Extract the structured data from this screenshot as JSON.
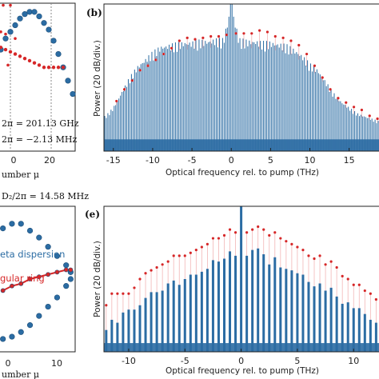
{
  "panels": {
    "a_partial": {
      "dashed_line_values": [
        0,
        17
      ],
      "x_ticks": [
        "0",
        "20"
      ],
      "xlabel": "umber μ",
      "annot1": "2π = 201.13 GHz",
      "annot2": "2π = −2.13 MHz",
      "annot_bottom": "D₂/2π = 14.58 MHz"
    },
    "b": {
      "label": "(b)",
      "ylabel": "Power (20 dB/div.)",
      "xlabel": "Optical frequency rel. to pump (THz)",
      "x_ticks": [
        "-15",
        "-10",
        "-5",
        "0",
        "5",
        "10",
        "15"
      ]
    },
    "d_partial": {
      "legend1": "eta dispersion",
      "legend2": "gular ring",
      "x_ticks": [
        "0",
        "10"
      ],
      "xlabel": "umber μ"
    },
    "e": {
      "label": "(e)",
      "ylabel": "Power (20 dB/div.)",
      "xlabel": "Optical frequency rel. to pump (THz)",
      "x_ticks": [
        "-10",
        "-5",
        "0",
        "5",
        "10"
      ]
    }
  },
  "colors": {
    "blue": "#2b6ca3",
    "red": "#d62728",
    "pink": "#f2b6b6"
  },
  "chart_data": [
    {
      "type": "bar",
      "panel": "b",
      "xlabel": "Optical frequency rel. to pump (THz)",
      "ylabel": "Power (20 dB/div.)",
      "xlim": [
        -16.2,
        19
      ],
      "ylim": [
        0,
        100
      ],
      "envelope": [
        [
          -16.0,
          24
        ],
        [
          -15.0,
          30
        ],
        [
          -14.0,
          40
        ],
        [
          -13.0,
          50
        ],
        [
          -12.0,
          58
        ],
        [
          -11.0,
          63
        ],
        [
          -10.0,
          68
        ],
        [
          -9.0,
          72
        ],
        [
          -8.0,
          73
        ],
        [
          -7.0,
          74
        ],
        [
          -6.0,
          75
        ],
        [
          -5.0,
          75
        ],
        [
          -4.0,
          76
        ],
        [
          -3.0,
          76
        ],
        [
          -2.0,
          77
        ],
        [
          -1.0,
          77
        ],
        [
          0.0,
          100
        ],
        [
          1.0,
          77
        ],
        [
          2.0,
          76
        ],
        [
          3.0,
          76
        ],
        [
          4.0,
          75
        ],
        [
          5.0,
          75
        ],
        [
          6.0,
          74
        ],
        [
          7.0,
          73
        ],
        [
          8.0,
          70
        ],
        [
          9.0,
          66
        ],
        [
          10.0,
          60
        ],
        [
          11.0,
          56
        ],
        [
          12.0,
          48
        ],
        [
          13.0,
          40
        ],
        [
          14.0,
          34
        ],
        [
          15.0,
          30
        ],
        [
          16.0,
          26
        ],
        [
          17.0,
          24
        ],
        [
          18.0,
          22
        ],
        [
          19.0,
          20
        ]
      ],
      "markers": [
        [
          -14.6,
          34
        ],
        [
          -13.6,
          42
        ],
        [
          -12.6,
          48
        ],
        [
          -11.6,
          55
        ],
        [
          -10.6,
          58
        ],
        [
          -9.6,
          62
        ],
        [
          -8.6,
          66
        ],
        [
          -7.6,
          70
        ],
        [
          -6.6,
          75
        ],
        [
          -5.6,
          77
        ],
        [
          -4.6,
          76
        ],
        [
          -3.6,
          77
        ],
        [
          -2.6,
          78
        ],
        [
          -1.6,
          78
        ],
        [
          -0.6,
          79
        ],
        [
          0.6,
          80
        ],
        [
          1.6,
          80
        ],
        [
          2.6,
          80
        ],
        [
          3.6,
          82
        ],
        [
          4.6,
          81
        ],
        [
          5.6,
          78
        ],
        [
          6.6,
          77
        ],
        [
          7.6,
          75
        ],
        [
          8.6,
          72
        ],
        [
          9.6,
          66
        ],
        [
          10.6,
          58
        ],
        [
          11.6,
          50
        ],
        [
          12.6,
          42
        ],
        [
          13.6,
          36
        ],
        [
          14.6,
          33
        ],
        [
          15.6,
          30
        ],
        [
          16.6,
          28
        ],
        [
          17.6,
          24
        ],
        [
          18.6,
          22
        ]
      ]
    },
    {
      "type": "bar",
      "panel": "e",
      "xlabel": "Optical frequency rel. to pump (THz)",
      "ylabel": "Power (20 dB/div.)",
      "xlim": [
        -12.2,
        12.4
      ],
      "ylim": [
        0,
        100
      ],
      "lines": [
        [
          -12.0,
          15
        ],
        [
          -11.5,
          22
        ],
        [
          -11.0,
          20
        ],
        [
          -10.5,
          27
        ],
        [
          -10.0,
          29
        ],
        [
          -9.5,
          29
        ],
        [
          -9.0,
          32
        ],
        [
          -8.5,
          37
        ],
        [
          -8.0,
          41
        ],
        [
          -7.5,
          41
        ],
        [
          -7.0,
          42
        ],
        [
          -6.5,
          47
        ],
        [
          -6.0,
          49
        ],
        [
          -5.5,
          46
        ],
        [
          -5.0,
          50
        ],
        [
          -4.5,
          53
        ],
        [
          -4.0,
          53
        ],
        [
          -3.5,
          55
        ],
        [
          -3.0,
          57
        ],
        [
          -2.5,
          63
        ],
        [
          -2.0,
          62
        ],
        [
          -1.5,
          64
        ],
        [
          -1.0,
          69
        ],
        [
          -0.5,
          66
        ],
        [
          0.0,
          100
        ],
        [
          0.5,
          66
        ],
        [
          1.0,
          70
        ],
        [
          1.5,
          71
        ],
        [
          2.0,
          67
        ],
        [
          2.5,
          60
        ],
        [
          3.0,
          65
        ],
        [
          3.5,
          58
        ],
        [
          4.0,
          57
        ],
        [
          4.5,
          56
        ],
        [
          5.0,
          54
        ],
        [
          5.5,
          53
        ],
        [
          6.0,
          48
        ],
        [
          6.5,
          45
        ],
        [
          7.0,
          47
        ],
        [
          7.5,
          42
        ],
        [
          8.0,
          44
        ],
        [
          8.5,
          38
        ],
        [
          9.0,
          33
        ],
        [
          9.5,
          34
        ],
        [
          10.0,
          30
        ],
        [
          10.5,
          30
        ],
        [
          11.0,
          26
        ],
        [
          11.5,
          22
        ],
        [
          12.0,
          20
        ]
      ],
      "markers": [
        [
          -12.0,
          32
        ],
        [
          -11.5,
          40
        ],
        [
          -11.0,
          40
        ],
        [
          -10.5,
          40
        ],
        [
          -10.0,
          40
        ],
        [
          -9.5,
          44
        ],
        [
          -9.0,
          50
        ],
        [
          -8.5,
          54
        ],
        [
          -8.0,
          56
        ],
        [
          -7.5,
          58
        ],
        [
          -7.0,
          60
        ],
        [
          -6.5,
          62
        ],
        [
          -6.0,
          66
        ],
        [
          -5.5,
          66
        ],
        [
          -5.0,
          66
        ],
        [
          -4.5,
          68
        ],
        [
          -4.0,
          70
        ],
        [
          -3.5,
          72
        ],
        [
          -3.0,
          74
        ],
        [
          -2.5,
          78
        ],
        [
          -2.0,
          78
        ],
        [
          -1.5,
          80
        ],
        [
          -1.0,
          84
        ],
        [
          -0.5,
          82
        ],
        [
          0.5,
          82
        ],
        [
          1.0,
          84
        ],
        [
          1.5,
          86
        ],
        [
          2.0,
          84
        ],
        [
          2.5,
          80
        ],
        [
          3.0,
          82
        ],
        [
          3.5,
          78
        ],
        [
          4.0,
          76
        ],
        [
          4.5,
          74
        ],
        [
          5.0,
          72
        ],
        [
          5.5,
          70
        ],
        [
          6.0,
          66
        ],
        [
          6.5,
          64
        ],
        [
          7.0,
          66
        ],
        [
          7.5,
          60
        ],
        [
          8.0,
          62
        ],
        [
          8.5,
          58
        ],
        [
          9.0,
          52
        ],
        [
          9.5,
          50
        ],
        [
          10.0,
          46
        ],
        [
          10.5,
          46
        ],
        [
          11.0,
          42
        ],
        [
          11.5,
          40
        ],
        [
          12.0,
          36
        ]
      ]
    },
    {
      "type": "scatter",
      "panel": "a_partial",
      "xlabel": "umber μ",
      "xlim": [
        -5,
        27
      ],
      "ylim": [
        -3,
        3
      ],
      "series": [
        {
          "values": [
            [
              -4,
              -0.2
            ],
            [
              -2,
              0.3
            ],
            [
              0,
              0.6
            ],
            [
              2,
              0.9
            ],
            [
              4,
              1.2
            ],
            [
              6,
              1.4
            ],
            [
              8,
              1.5
            ],
            [
              10,
              1.5
            ],
            [
              12,
              1.3
            ],
            [
              14,
              1.0
            ],
            [
              16,
              0.7
            ],
            [
              18,
              0.2
            ],
            [
              20,
              -0.4
            ],
            [
              22,
              -1.0
            ],
            [
              24,
              -1.6
            ],
            [
              26,
              -2.2
            ]
          ]
        },
        {
          "values": [
            [
              -4,
              -0.1
            ],
            [
              -2,
              -0.2
            ],
            [
              0,
              -0.3
            ],
            [
              2,
              -0.4
            ],
            [
              4,
              -0.5
            ],
            [
              6,
              -0.6
            ],
            [
              8,
              -0.7
            ],
            [
              10,
              -0.8
            ],
            [
              12,
              -0.9
            ],
            [
              14,
              -1.0
            ],
            [
              16,
              -1.0
            ],
            [
              18,
              -1.0
            ],
            [
              20,
              -1.0
            ],
            [
              22,
              -1.0
            ]
          ]
        },
        {
          "values": [
            [
              -4,
              0.6
            ],
            [
              -3,
              1.8
            ],
            [
              -2,
              0.5
            ],
            [
              -1,
              -0.9
            ],
            [
              0,
              1.8
            ],
            [
              2,
              0.3
            ]
          ]
        }
      ]
    },
    {
      "type": "scatter",
      "panel": "d_partial",
      "xlabel": "umber μ",
      "xlim": [
        -3,
        14
      ],
      "ylim": [
        -3,
        3
      ],
      "series": [
        {
          "values": [
            [
              -2,
              2.2
            ],
            [
              0,
              2.4
            ],
            [
              2,
              2.4
            ],
            [
              4,
              2.1
            ],
            [
              6,
              1.8
            ],
            [
              8,
              1.4
            ],
            [
              10,
              1.0
            ],
            [
              12,
              0.6
            ],
            [
              13,
              0.3
            ]
          ]
        },
        {
          "values": [
            [
              -2,
              -0.5
            ],
            [
              0,
              -0.3
            ],
            [
              2,
              -0.2
            ],
            [
              4,
              0.0
            ],
            [
              6,
              0.1
            ],
            [
              8,
              0.2
            ],
            [
              10,
              0.3
            ],
            [
              12,
              0.4
            ],
            [
              13,
              0.4
            ]
          ]
        },
        {
          "values": [
            [
              -2,
              -2.6
            ],
            [
              0,
              -2.5
            ],
            [
              2,
              -2.3
            ],
            [
              4,
              -2.0
            ],
            [
              6,
              -1.6
            ],
            [
              8,
              -1.2
            ],
            [
              10,
              -0.8
            ],
            [
              12,
              -0.3
            ],
            [
              13,
              0.0
            ]
          ]
        }
      ]
    }
  ]
}
